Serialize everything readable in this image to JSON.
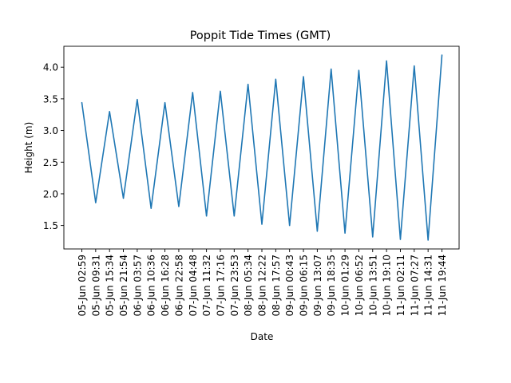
{
  "chart_data": {
    "type": "line",
    "title": "Poppit Tide Times (GMT)",
    "xlabel": "Date",
    "ylabel": "Height (m)",
    "ylim": [
      1.13,
      4.33
    ],
    "yticks": [
      "1.5",
      "2.0",
      "2.5",
      "3.0",
      "3.5",
      "4.0"
    ],
    "grid": false,
    "line_color": "#1f77b4",
    "categories": [
      "05-Jun 02:59",
      "05-Jun 09:31",
      "05-Jun 15:34",
      "05-Jun 21:54",
      "06-Jun 03:57",
      "06-Jun 10:36",
      "06-Jun 16:28",
      "06-Jun 22:58",
      "07-Jun 04:48",
      "07-Jun 11:32",
      "07-Jun 17:16",
      "07-Jun 23:53",
      "08-Jun 05:34",
      "08-Jun 12:22",
      "08-Jun 17:57",
      "09-Jun 00:43",
      "09-Jun 06:15",
      "09-Jun 13:07",
      "09-Jun 18:35",
      "10-Jun 01:29",
      "10-Jun 06:52",
      "10-Jun 13:51",
      "10-Jun 19:10",
      "11-Jun 02:11",
      "11-Jun 07:27",
      "11-Jun 14:31",
      "11-Jun 19:44"
    ],
    "values": [
      3.44,
      1.86,
      3.3,
      1.93,
      3.49,
      1.77,
      3.44,
      1.8,
      3.6,
      1.65,
      3.62,
      1.65,
      3.73,
      1.52,
      3.81,
      1.5,
      3.85,
      1.41,
      3.97,
      1.38,
      3.95,
      1.32,
      4.1,
      1.28,
      4.02,
      1.27,
      4.19
    ]
  }
}
